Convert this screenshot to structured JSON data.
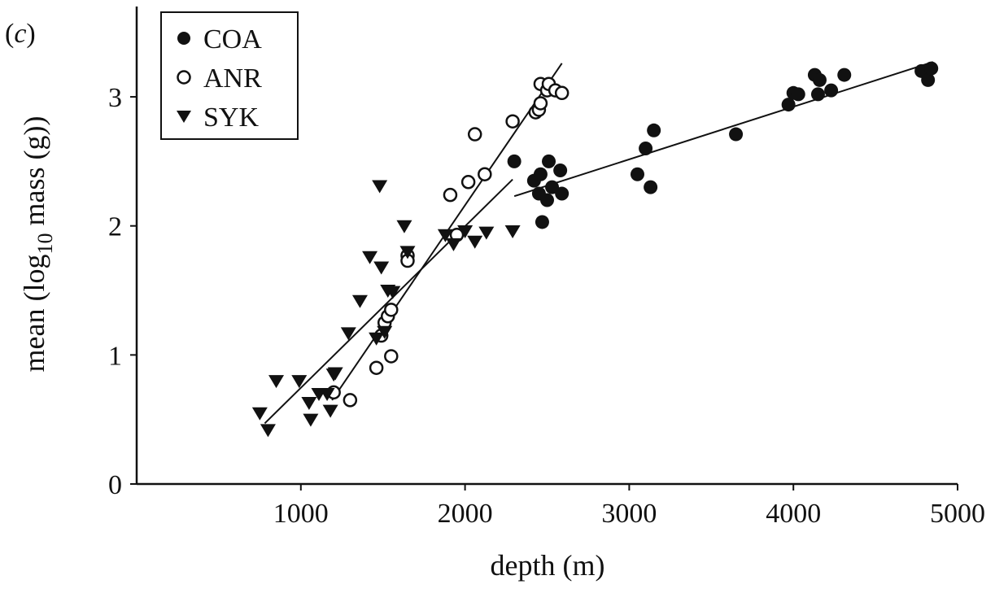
{
  "panel_label_prefix": "(",
  "panel_label_letter": "c",
  "panel_label_suffix": ")",
  "chart_data": {
    "type": "scatter",
    "xlabel": "depth (m)",
    "ylabel_prefix": "mean (log",
    "ylabel_sub": "10",
    "ylabel_suffix": " mass (g))",
    "xlim": [
      0,
      5000
    ],
    "ylim": [
      0,
      3.7
    ],
    "xticks": [
      1000,
      2000,
      3000,
      4000,
      5000
    ],
    "yticks": [
      0,
      1,
      2,
      3
    ],
    "legend": [
      "COA",
      "ANR",
      "SYK"
    ],
    "legend_position": "top-left",
    "grid": false,
    "series": [
      {
        "name": "COA",
        "marker": "filled-circle",
        "points": [
          [
            2300,
            2.5
          ],
          [
            2420,
            2.35
          ],
          [
            2450,
            2.25
          ],
          [
            2460,
            2.4
          ],
          [
            2470,
            2.03
          ],
          [
            2500,
            2.2
          ],
          [
            2510,
            2.5
          ],
          [
            2530,
            2.3
          ],
          [
            2580,
            2.43
          ],
          [
            2590,
            2.25
          ],
          [
            3050,
            2.4
          ],
          [
            3100,
            2.6
          ],
          [
            3130,
            2.3
          ],
          [
            3150,
            2.74
          ],
          [
            3650,
            2.71
          ],
          [
            3970,
            2.94
          ],
          [
            4000,
            3.03
          ],
          [
            4030,
            3.02
          ],
          [
            4130,
            3.17
          ],
          [
            4150,
            3.02
          ],
          [
            4160,
            3.13
          ],
          [
            4230,
            3.05
          ],
          [
            4310,
            3.17
          ],
          [
            4780,
            3.2
          ],
          [
            4820,
            3.13
          ],
          [
            4840,
            3.22
          ]
        ]
      },
      {
        "name": "ANR",
        "marker": "open-circle",
        "points": [
          [
            1200,
            0.71
          ],
          [
            1300,
            0.65
          ],
          [
            1460,
            0.9
          ],
          [
            1490,
            1.15
          ],
          [
            1510,
            1.25
          ],
          [
            1530,
            1.3
          ],
          [
            1550,
            1.35
          ],
          [
            1550,
            0.99
          ],
          [
            1650,
            1.77
          ],
          [
            1650,
            1.73
          ],
          [
            1910,
            2.24
          ],
          [
            1950,
            1.93
          ],
          [
            2020,
            2.34
          ],
          [
            2060,
            2.71
          ],
          [
            2120,
            2.4
          ],
          [
            2290,
            2.81
          ],
          [
            2430,
            2.88
          ],
          [
            2450,
            2.9
          ],
          [
            2460,
            2.95
          ],
          [
            2460,
            3.1
          ],
          [
            2500,
            3.05
          ],
          [
            2510,
            3.1
          ],
          [
            2550,
            3.05
          ],
          [
            2590,
            3.03
          ]
        ]
      },
      {
        "name": "SYK",
        "marker": "filled-triangle-down",
        "points": [
          [
            750,
            0.55
          ],
          [
            800,
            0.42
          ],
          [
            850,
            0.8
          ],
          [
            990,
            0.8
          ],
          [
            1050,
            0.63
          ],
          [
            1060,
            0.5
          ],
          [
            1110,
            0.7
          ],
          [
            1160,
            0.7
          ],
          [
            1180,
            0.57
          ],
          [
            1200,
            0.85
          ],
          [
            1210,
            0.86
          ],
          [
            1290,
            1.17
          ],
          [
            1360,
            1.42
          ],
          [
            1420,
            1.76
          ],
          [
            1460,
            1.13
          ],
          [
            1480,
            2.31
          ],
          [
            1490,
            1.68
          ],
          [
            1510,
            1.18
          ],
          [
            1530,
            1.5
          ],
          [
            1560,
            1.49
          ],
          [
            1630,
            2.0
          ],
          [
            1650,
            1.8
          ],
          [
            1880,
            1.93
          ],
          [
            1930,
            1.86
          ],
          [
            2000,
            1.96
          ],
          [
            2060,
            1.88
          ],
          [
            2130,
            1.95
          ],
          [
            2290,
            1.96
          ]
        ]
      }
    ],
    "trend_lines": [
      {
        "series": "COA",
        "from": [
          2300,
          2.23
        ],
        "to": [
          4850,
          3.27
        ]
      },
      {
        "series": "ANR",
        "from": [
          1190,
          0.65
        ],
        "to": [
          2590,
          3.26
        ]
      },
      {
        "series": "SYK",
        "from": [
          780,
          0.47
        ],
        "to": [
          2290,
          2.36
        ]
      }
    ]
  }
}
